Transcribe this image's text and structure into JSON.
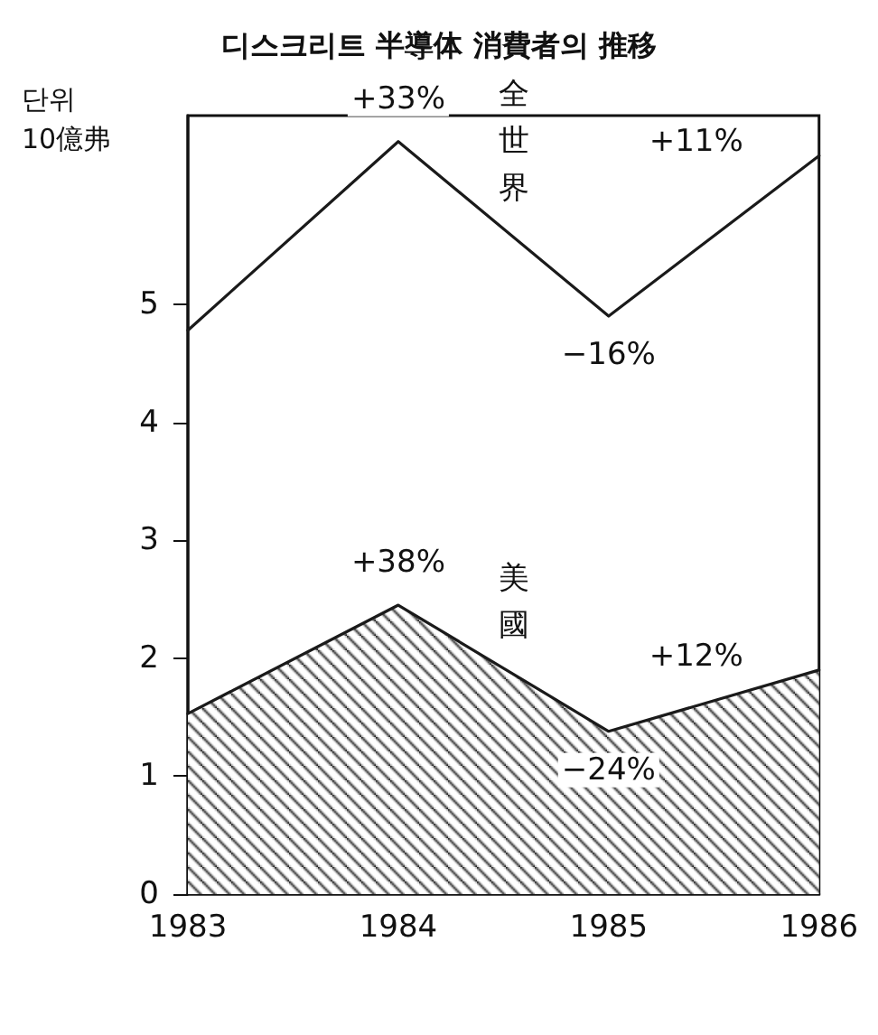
{
  "chart_data": {
    "type": "line",
    "title": "디스크리트 半導体 消費者의 推移",
    "ylabel": "단위\n10億弗",
    "categories": [
      "1983",
      "1984",
      "1985",
      "1986"
    ],
    "series": [
      {
        "name": "全世界",
        "color": "#1a1a1a",
        "values": [
          4.78,
          6.38,
          4.9,
          6.26
        ]
      },
      {
        "name": "美國",
        "type": "area",
        "color": "#1a1a1a",
        "values": [
          1.53,
          2.45,
          1.38,
          1.9
        ]
      }
    ],
    "ylim": [
      0,
      6.6
    ],
    "yticks": [
      0,
      1,
      2,
      3,
      4,
      5
    ],
    "grid": false,
    "legend": false,
    "marker": "none",
    "line_style": "solid",
    "annotations": [
      {
        "text": "+33%",
        "x": "1984",
        "y": 6.38
      },
      {
        "text": "−16%",
        "x": "1985",
        "y": 4.9
      },
      {
        "text": "+11%",
        "x": "1986",
        "y": 6.26
      },
      {
        "text": "+38%",
        "x": "1984",
        "y": 2.45
      },
      {
        "text": "−24%",
        "x": "1985",
        "y": 1.38
      },
      {
        "text": "+12%",
        "x": "1986",
        "y": 1.9
      }
    ]
  }
}
